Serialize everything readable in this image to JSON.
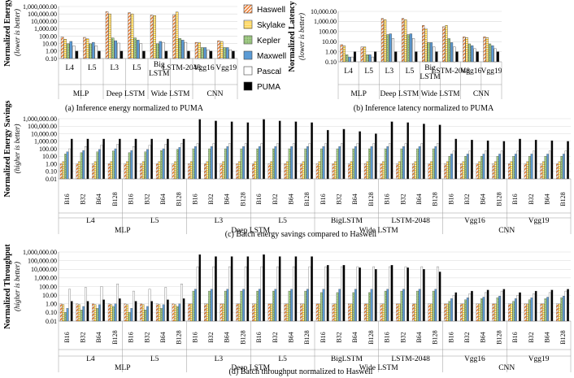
{
  "platforms": [
    "Haswell",
    "Skylake",
    "Kepler",
    "Maxwell",
    "Pascal",
    "PUMA"
  ],
  "legend": {
    "items": [
      {
        "name": "Haswell",
        "fill": "#ED7D31",
        "pattern": "diag"
      },
      {
        "name": "Skylake",
        "fill": "#FFC000",
        "pattern": "horiz"
      },
      {
        "name": "Kepler",
        "fill": "#A9D18E",
        "pattern": "dots"
      },
      {
        "name": "Maxwell",
        "fill": "#5B9BD5",
        "pattern": "none"
      },
      {
        "name": "Pascal",
        "fill": "#ffffff",
        "pattern": "none"
      },
      {
        "name": "PUMA",
        "fill": "#000000",
        "pattern": "none"
      }
    ]
  },
  "chart_data": [
    {
      "id": "a",
      "type": "bar",
      "caption": "(a) Inference energy normalized to PUMA",
      "ylabel": "Normalized Energy",
      "ysub": "(lower is better)",
      "yscale": "log",
      "ylim": [
        0.1,
        1000000
      ],
      "yticks": [
        "1,000,000.00",
        "100,000.00",
        "10,000.00",
        "1,000.00",
        "100.00",
        "10.00",
        "1.00",
        "0.10"
      ],
      "categories": [
        "L4",
        "L5",
        "L3",
        "L5",
        "Big LSTM",
        "LSTM-2048",
        "Vgg16",
        "Vgg19"
      ],
      "groups": [
        {
          "name": "MLP",
          "count": 2
        },
        {
          "name": "Deep LSTM",
          "count": 2
        },
        {
          "name": "Wide LSTM",
          "count": 2
        },
        {
          "name": "CNN",
          "count": 2
        }
      ],
      "series": [
        {
          "name": "Haswell",
          "values": [
            80,
            70,
            200000,
            150000,
            70000,
            80000,
            15,
            25
          ]
        },
        {
          "name": "Skylake",
          "values": [
            40,
            45,
            100000,
            100000,
            60000,
            180000,
            15,
            20
          ]
        },
        {
          "name": "Kepler",
          "values": [
            10,
            10,
            60,
            60,
            10,
            50,
            3,
            3
          ]
        },
        {
          "name": "Maxwell",
          "values": [
            20,
            15,
            25,
            30,
            20,
            30,
            3,
            3
          ]
        },
        {
          "name": "Pascal",
          "values": [
            5,
            5,
            12,
            10,
            15,
            15,
            1.5,
            1.5
          ]
        },
        {
          "name": "PUMA",
          "values": [
            1,
            1,
            1,
            1,
            1,
            1,
            1,
            1
          ]
        }
      ]
    },
    {
      "id": "b",
      "type": "bar",
      "caption": "(b) Inference latency normalized to PUMA",
      "ylabel": "Normalized Latency",
      "ysub": "(lower is better)",
      "yscale": "log",
      "ylim": [
        0.1,
        10000
      ],
      "yticks": [
        "10,000.00",
        "1,000.00",
        "100.00",
        "10.00",
        "1.00",
        "0.10"
      ],
      "categories": [
        "L4",
        "L5",
        "L3",
        "L5",
        "Big LSTM",
        "LSTM-2048",
        "Vgg16",
        "Vgg19"
      ],
      "groups": [
        {
          "name": "MLP",
          "count": 2
        },
        {
          "name": "Deep LSTM",
          "count": 2
        },
        {
          "name": "Wide LSTM",
          "count": 2
        },
        {
          "name": "CNN",
          "count": 2
        }
      ],
      "series": [
        {
          "name": "Haswell",
          "values": [
            5,
            3,
            2000,
            2000,
            400,
            300,
            30,
            30
          ]
        },
        {
          "name": "Skylake",
          "values": [
            4,
            3,
            1500,
            1500,
            200,
            400,
            25,
            25
          ]
        },
        {
          "name": "Kepler",
          "values": [
            0.5,
            0.5,
            50,
            50,
            8,
            20,
            6,
            6
          ]
        },
        {
          "name": "Maxwell",
          "values": [
            0.3,
            0.5,
            60,
            60,
            8,
            8,
            4,
            4
          ]
        },
        {
          "name": "Pascal",
          "values": [
            0.3,
            0.3,
            20,
            20,
            3,
            3,
            2,
            2
          ]
        },
        {
          "name": "PUMA",
          "values": [
            1,
            1,
            1,
            1,
            1,
            1,
            1,
            1
          ]
        }
      ]
    },
    {
      "id": "c",
      "type": "bar",
      "caption": "(c) Batch energy savings compared to Haswell",
      "ylabel": "Normalized Energy Savings",
      "ysub": "(higher is better)",
      "yscale": "log",
      "ylim": [
        0.01,
        1000000
      ],
      "yticks": [
        "1,000,000.00",
        "100,000.00",
        "10,000.00",
        "1,000.00",
        "100.00",
        "10.00",
        "1.00",
        "0.10",
        "0.01"
      ],
      "batches": [
        "B16",
        "B32",
        "B64",
        "B128"
      ],
      "models": [
        "L4",
        "L5",
        "L3",
        "L5",
        "BigLSTM",
        "LSTM-2048",
        "Vgg16",
        "Vgg19"
      ],
      "groups": [
        {
          "name": "MLP",
          "count": 2
        },
        {
          "name": "Deep LSTM",
          "count": 2
        },
        {
          "name": "Wide LSTM",
          "count": 2
        },
        {
          "name": "CNN",
          "count": 2
        }
      ],
      "series": [
        {
          "name": "Haswell",
          "values": [
            1,
            1,
            1,
            1,
            1,
            1,
            1,
            1,
            1,
            1,
            1,
            1,
            1,
            1,
            1,
            1,
            1,
            1,
            1,
            1,
            1,
            1,
            1,
            1,
            1,
            1,
            1,
            1,
            1,
            1,
            1,
            1
          ]
        },
        {
          "name": "Skylake",
          "values": [
            2,
            2,
            2,
            2,
            2,
            2,
            2,
            2,
            2,
            2,
            2,
            2,
            2,
            2,
            2,
            2,
            2,
            2,
            2,
            2,
            2,
            2,
            2,
            2,
            2,
            2,
            2,
            2,
            2,
            2,
            2,
            2
          ]
        },
        {
          "name": "Kepler",
          "values": [
            20,
            30,
            40,
            50,
            30,
            40,
            60,
            80,
            100,
            100,
            100,
            100,
            100,
            100,
            100,
            100,
            100,
            100,
            100,
            100,
            100,
            100,
            100,
            100,
            10,
            10,
            10,
            10,
            10,
            10,
            10,
            10
          ]
        },
        {
          "name": "Maxwell",
          "values": [
            40,
            60,
            80,
            100,
            60,
            80,
            100,
            150,
            200,
            200,
            200,
            200,
            200,
            200,
            200,
            200,
            200,
            200,
            200,
            200,
            200,
            200,
            200,
            200,
            20,
            20,
            20,
            20,
            20,
            20,
            20,
            20
          ]
        },
        {
          "name": "Pascal",
          "values": [
            100,
            200,
            300,
            400,
            200,
            300,
            400,
            500,
            500,
            500,
            500,
            500,
            500,
            500,
            500,
            500,
            500,
            500,
            500,
            500,
            500,
            500,
            500,
            500,
            50,
            50,
            50,
            50,
            50,
            50,
            50,
            50
          ]
        },
        {
          "name": "PUMA",
          "values": [
            2000,
            2000,
            2000,
            2000,
            2000,
            2000,
            2000,
            2000,
            800000,
            500000,
            400000,
            300000,
            800000,
            500000,
            400000,
            300000,
            30000,
            40000,
            20000,
            10000,
            400000,
            300000,
            200000,
            150000,
            2000,
            1500,
            1200,
            1000,
            2000,
            1500,
            1200,
            1000
          ]
        }
      ]
    },
    {
      "id": "d",
      "type": "bar",
      "caption": "(d) Batch throughput normalized to Haswell",
      "ylabel": "Normalized Throughput",
      "ysub": "(higher is better)",
      "yscale": "log",
      "ylim": [
        0.01,
        1000000
      ],
      "yticks": [
        "1,000,000.00",
        "100,000.00",
        "10,000.00",
        "1,000.00",
        "100.00",
        "10.00",
        "1.00",
        "0.10",
        "0.01"
      ],
      "batches": [
        "B16",
        "B32",
        "B64",
        "B128"
      ],
      "models": [
        "L4",
        "L5",
        "L3",
        "L5",
        "BigLSTM",
        "LSTM-2048",
        "Vgg16",
        "Vgg19"
      ],
      "groups": [
        {
          "name": "MLP",
          "count": 2
        },
        {
          "name": "Deep LSTM",
          "count": 2
        },
        {
          "name": "Wide LSTM",
          "count": 2
        },
        {
          "name": "CNN",
          "count": 2
        }
      ],
      "series": [
        {
          "name": "Haswell",
          "values": [
            1,
            1,
            1,
            1,
            1,
            1,
            1,
            1,
            1,
            1,
            1,
            1,
            1,
            1,
            1,
            1,
            1,
            1,
            1,
            1,
            1,
            1,
            1,
            1,
            1,
            1,
            1,
            1,
            1,
            1,
            1,
            1
          ]
        },
        {
          "name": "Skylake",
          "values": [
            0.8,
            0.8,
            0.8,
            0.8,
            0.8,
            0.8,
            0.8,
            0.8,
            1,
            1,
            1,
            1,
            1,
            1,
            1,
            1,
            1,
            1,
            1,
            1,
            1,
            1,
            1,
            1,
            1,
            1,
            1,
            1,
            1,
            1,
            1,
            1
          ]
        },
        {
          "name": "Kepler",
          "values": [
            0.1,
            0.2,
            0.3,
            0.5,
            0.1,
            0.2,
            0.3,
            0.5,
            30,
            30,
            30,
            30,
            30,
            30,
            30,
            30,
            20,
            20,
            20,
            20,
            30,
            30,
            30,
            30,
            2,
            3,
            4,
            5,
            2,
            3,
            4,
            5
          ]
        },
        {
          "name": "Maxwell",
          "values": [
            0.3,
            0.5,
            0.8,
            1,
            0.3,
            0.5,
            0.8,
            1,
            50,
            50,
            50,
            50,
            50,
            50,
            50,
            50,
            50,
            50,
            50,
            50,
            50,
            50,
            50,
            50,
            4,
            5,
            6,
            8,
            4,
            5,
            6,
            8
          ]
        },
        {
          "name": "Pascal",
          "values": [
            50,
            80,
            100,
            200,
            30,
            50,
            80,
            200,
            20000,
            20000,
            20000,
            20000,
            20000,
            20000,
            20000,
            20000,
            20000,
            20000,
            20000,
            20000,
            20000,
            20000,
            20000,
            20000,
            10,
            15,
            20,
            30,
            10,
            15,
            20,
            30
          ]
        },
        {
          "name": "PUMA",
          "values": [
            2,
            2,
            3,
            4,
            2,
            2,
            3,
            4,
            500000,
            300000,
            300000,
            300000,
            500000,
            300000,
            300000,
            300000,
            30000,
            30000,
            15000,
            10000,
            30000,
            15000,
            10000,
            5000,
            20,
            30,
            40,
            50,
            20,
            30,
            40,
            50
          ]
        }
      ]
    }
  ]
}
